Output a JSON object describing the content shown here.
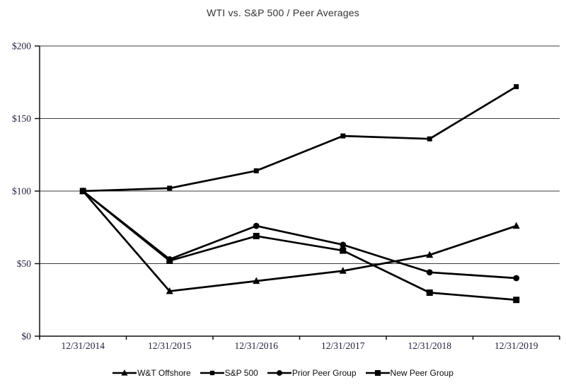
{
  "chart_data": {
    "type": "line",
    "title": "WTI vs. S&P 500 / Peer Averages",
    "categories": [
      "12/31/2014",
      "12/31/2015",
      "12/31/2016",
      "12/31/2017",
      "12/31/2018",
      "12/31/2019"
    ],
    "series": [
      {
        "name": "W&T Offshore",
        "marker": "triangle",
        "values": [
          100,
          31,
          38,
          45,
          56,
          76
        ]
      },
      {
        "name": "S&P 500",
        "marker": "square-small",
        "values": [
          100,
          102,
          114,
          138,
          136,
          172
        ]
      },
      {
        "name": "Prior Peer Group",
        "marker": "circle",
        "values": [
          100,
          53,
          76,
          63,
          44,
          40
        ]
      },
      {
        "name": "New Peer Group",
        "marker": "square",
        "values": [
          100,
          52,
          69,
          59,
          30,
          25
        ]
      }
    ],
    "ylim": [
      0,
      200
    ],
    "yticks": [
      {
        "value": 0,
        "label": "$0"
      },
      {
        "value": 50,
        "label": "$50"
      },
      {
        "value": 100,
        "label": "$100"
      },
      {
        "value": 150,
        "label": "$150"
      },
      {
        "value": 200,
        "label": "$200"
      }
    ],
    "xlabel": "",
    "ylabel": "",
    "grid": true,
    "legend_position": "bottom",
    "line_color": "#000000",
    "grid_color": "#3d3d3d",
    "tick_text_color": "#1f1f3c",
    "background_color": "#ffffff"
  }
}
